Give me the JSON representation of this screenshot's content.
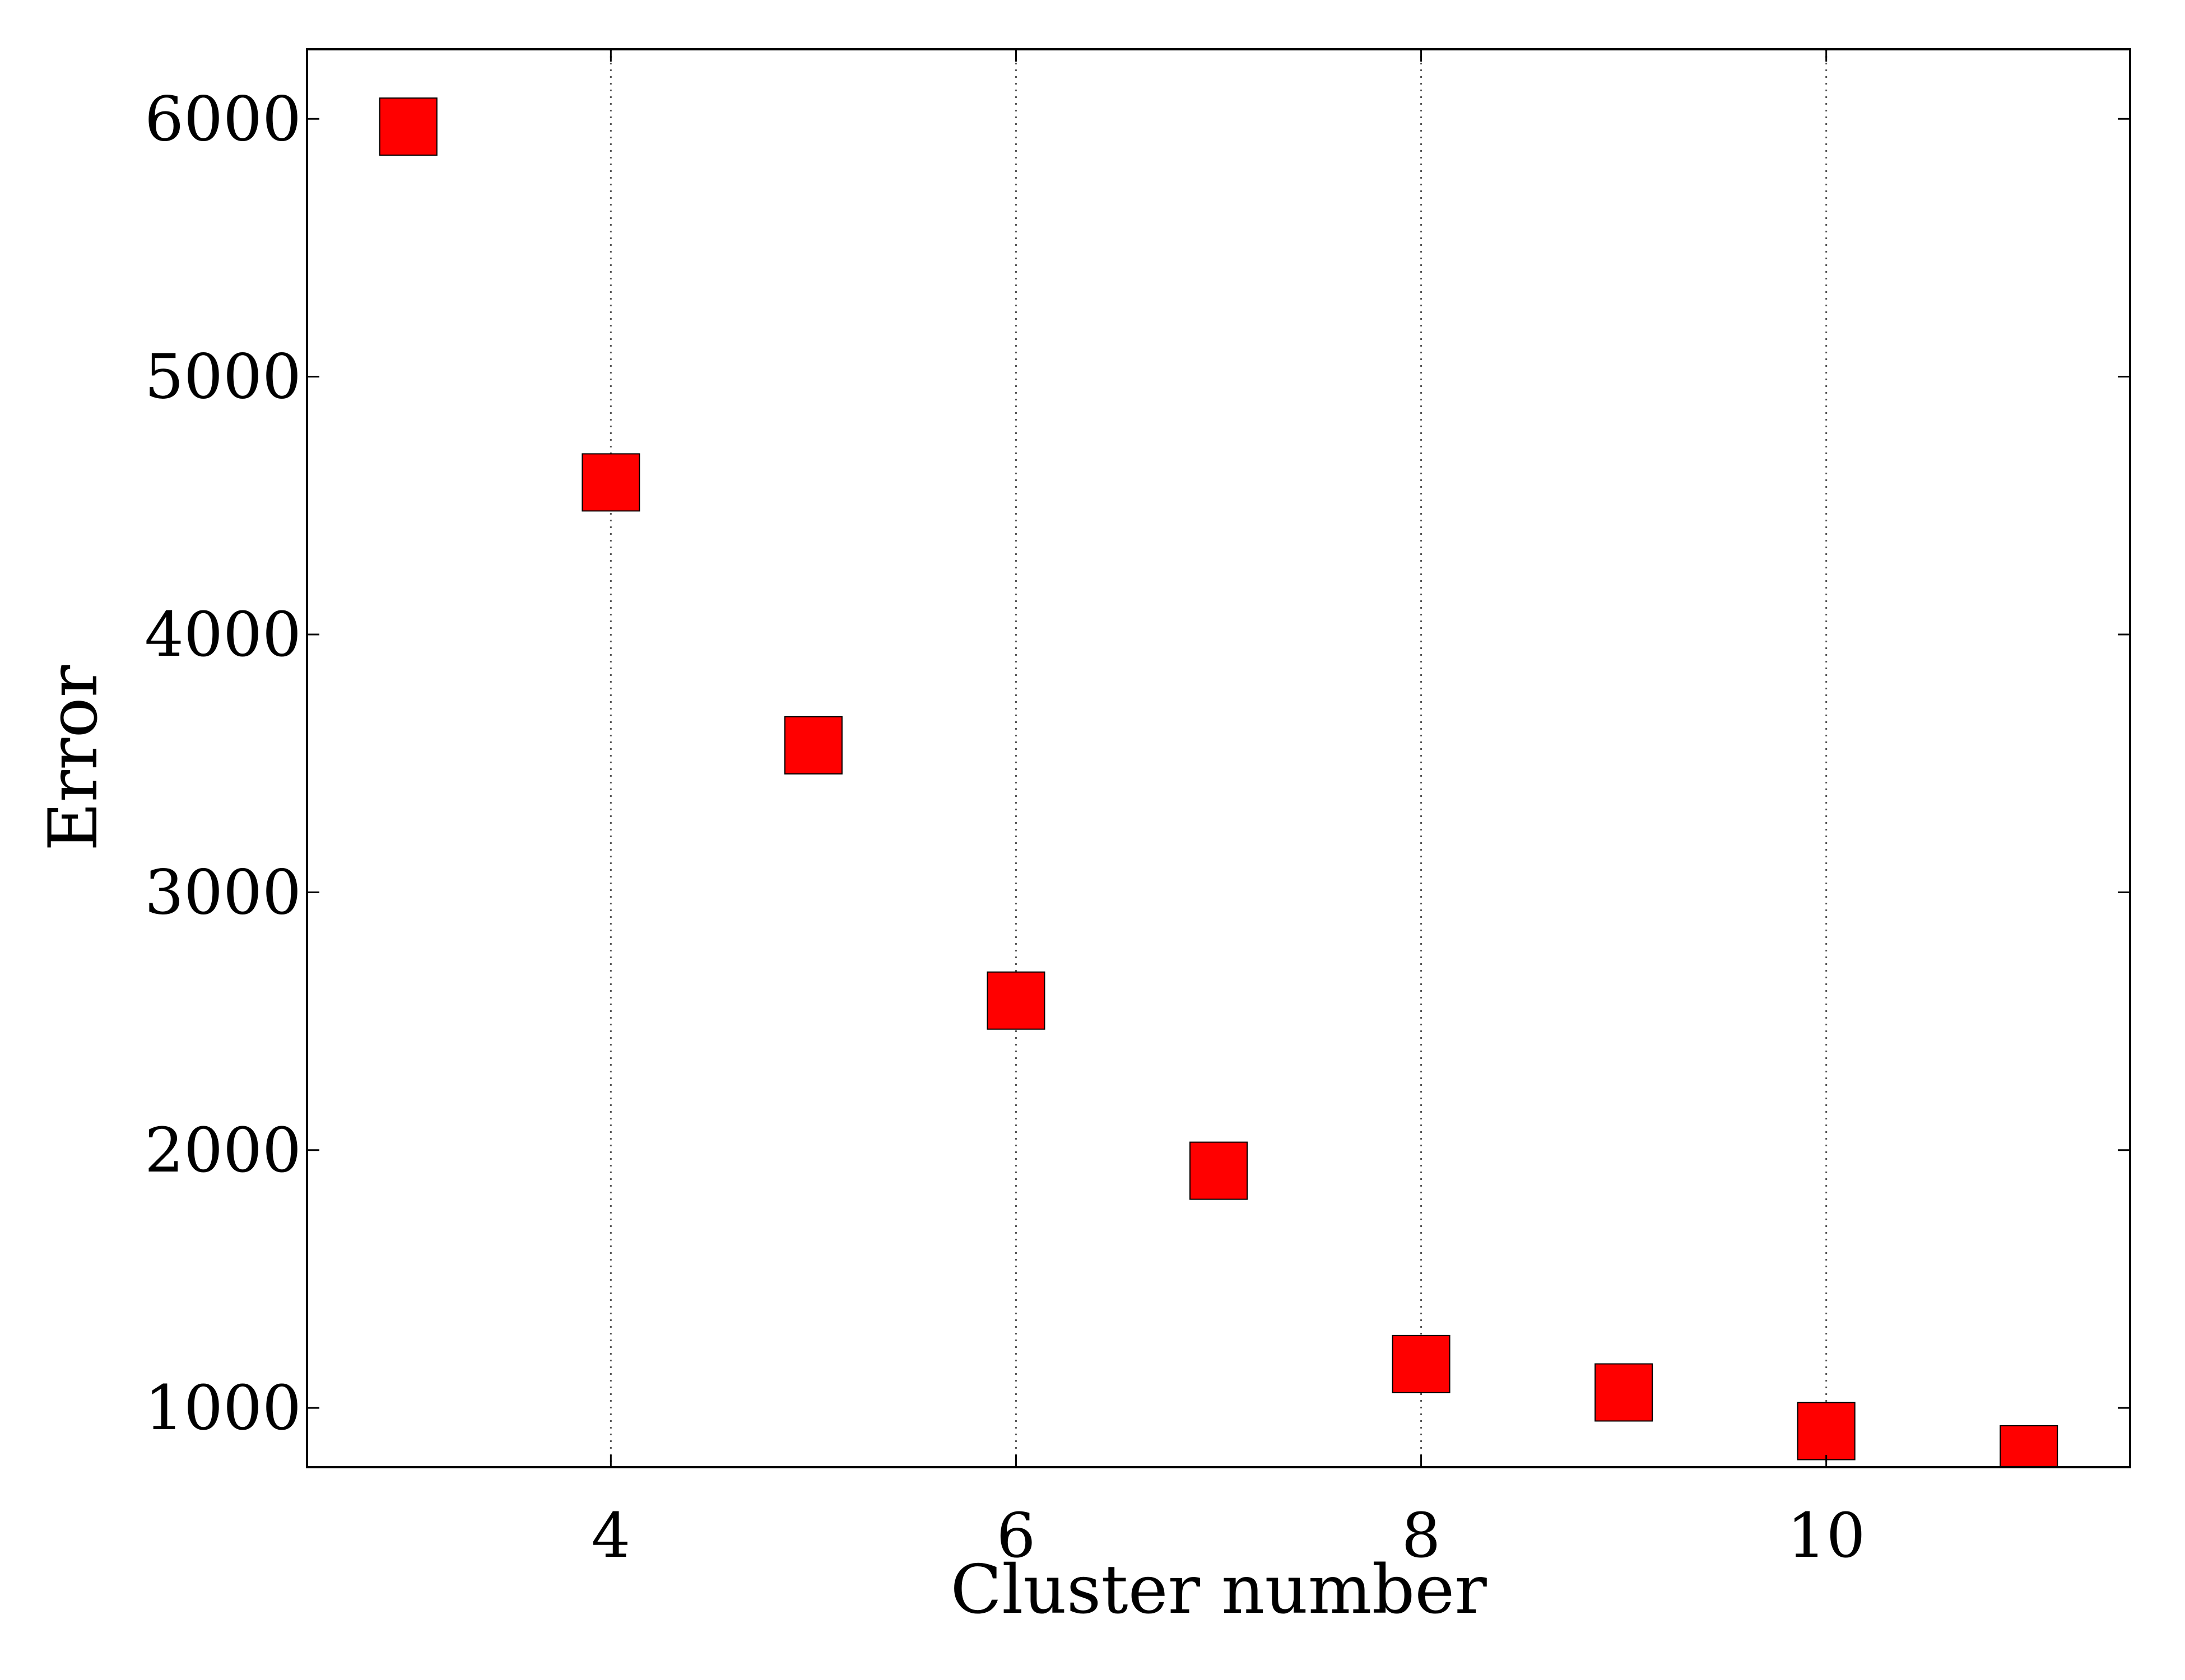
{
  "chart_data": {
    "type": "scatter",
    "title": "",
    "xlabel": "Cluster number",
    "ylabel": "Error",
    "xlim": [
      2.5,
      11.5
    ],
    "ylim": [
      770,
      6270
    ],
    "x_ticks": [
      4,
      6,
      8,
      10
    ],
    "x_tick_labels": [
      "4",
      "6",
      "8",
      "10"
    ],
    "y_ticks": [
      1000,
      2000,
      3000,
      4000,
      5000,
      6000
    ],
    "y_tick_labels": [
      "1000",
      "2000",
      "3000",
      "4000",
      "5000",
      "6000"
    ],
    "grid": "vertical dotted at x ticks",
    "marker": "square",
    "marker_color": "#ff0000",
    "marker_edge_color": "#000000",
    "series": [
      {
        "x": [
          3,
          4,
          5,
          6,
          7,
          8,
          9,
          10,
          11
        ],
        "y": [
          5970,
          4590,
          3570,
          2580,
          1920,
          1170,
          1060,
          910,
          820
        ]
      }
    ]
  }
}
